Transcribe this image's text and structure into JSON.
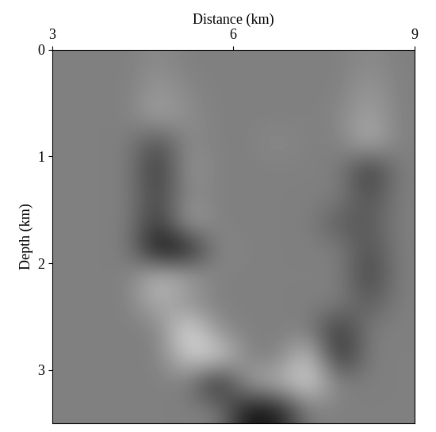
{
  "chart_data": {
    "type": "heatmap",
    "x_label": "Distance (km)",
    "y_label": "Depth (km)",
    "xlim": [
      3,
      9
    ],
    "xticks": [
      3,
      6,
      9
    ],
    "ylim": [
      3.5,
      0
    ],
    "yticks": [
      0,
      1,
      2,
      3
    ],
    "color": "gray",
    "value_range": [
      -1,
      1
    ],
    "cells": [
      [
        0,
        0,
        0,
        0.1,
        0,
        0,
        0,
        0,
        0,
        0,
        0.1,
        0
      ],
      [
        0,
        0,
        0,
        0.2,
        0.05,
        0,
        0,
        0,
        0,
        0,
        0.2,
        0
      ],
      [
        0,
        0,
        0,
        0.3,
        0.1,
        0,
        0,
        0,
        0,
        0.05,
        0.3,
        0
      ],
      [
        0,
        0,
        0,
        -0.4,
        0.1,
        0,
        0,
        0.1,
        0,
        0,
        0.4,
        0
      ],
      [
        0,
        0,
        0,
        -0.6,
        0.2,
        0,
        0,
        0,
        0,
        0,
        -0.6,
        0
      ],
      [
        0,
        0,
        0,
        -0.5,
        0.1,
        0,
        0,
        0,
        0,
        0,
        -0.4,
        0
      ],
      [
        0,
        0,
        0,
        -0.6,
        0.3,
        0,
        0,
        0,
        0,
        -0.3,
        -0.3,
        0
      ],
      [
        0,
        0,
        0,
        -0.9,
        -0.8,
        0.1,
        0,
        0,
        0,
        0,
        -0.4,
        0
      ],
      [
        0,
        0,
        0,
        0.5,
        0.3,
        0,
        0,
        0,
        0,
        0,
        -0.5,
        0
      ],
      [
        0,
        0,
        0,
        0.4,
        0.1,
        0,
        0,
        0,
        0,
        0,
        -0.3,
        0
      ],
      [
        0,
        0,
        0,
        0,
        0.8,
        0.1,
        0,
        0,
        0,
        -0.6,
        0,
        0
      ],
      [
        0,
        0,
        0,
        0,
        0.6,
        0.7,
        0,
        0,
        0.6,
        -0.7,
        0,
        0
      ],
      [
        0,
        0,
        0,
        0,
        0,
        -0.8,
        0.3,
        0.4,
        0.7,
        0,
        0,
        0
      ],
      [
        0,
        0,
        0,
        0,
        0,
        0,
        -0.9,
        -0.8,
        0,
        0,
        0,
        0
      ]
    ]
  }
}
